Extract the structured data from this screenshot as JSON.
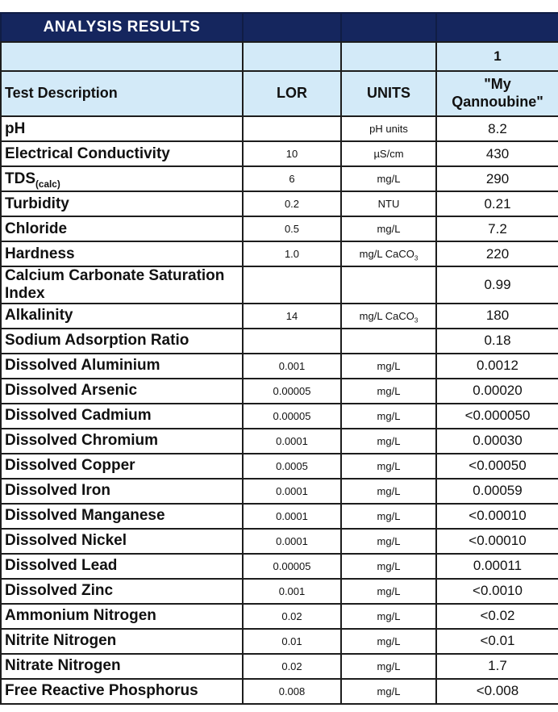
{
  "header": {
    "title": "ANALYSIS RESULTS",
    "sample_number": "1",
    "col_test": "Test Description",
    "col_lor": "LOR",
    "col_units": "UNITS",
    "sample_name": "\"My Qannoubine\""
  },
  "colors": {
    "band_navy": "#15265e",
    "band_light_blue": "#d3eaf8",
    "grid_border": "#1d1d1d"
  },
  "rows": [
    {
      "test": "pH",
      "lor": "",
      "units": "pH units",
      "value": "8.2"
    },
    {
      "test": "Electrical Conductivity",
      "lor": "10",
      "units": "µS/cm",
      "value": "430"
    },
    {
      "test": "TDS",
      "test_sub": "(calc)",
      "lor": "6",
      "units": "mg/L",
      "value": "290"
    },
    {
      "test": "Turbidity",
      "lor": "0.2",
      "units": "NTU",
      "value": "0.21"
    },
    {
      "test": "Chloride",
      "lor": "0.5",
      "units": "mg/L",
      "value": "7.2"
    },
    {
      "test": "Hardness",
      "lor": "1.0",
      "units": "mg/L CaCO",
      "units_sub": "3",
      "value": "220"
    },
    {
      "test": "Calcium Carbonate Saturation Index",
      "lor": "",
      "units": "",
      "value": "0.99"
    },
    {
      "test": "Alkalinity",
      "lor": "14",
      "units": "mg/L CaCO",
      "units_sub": "3",
      "value": "180"
    },
    {
      "test": "Sodium Adsorption Ratio",
      "lor": "",
      "units": "",
      "value": "0.18"
    },
    {
      "test": "Dissolved Aluminium",
      "lor": "0.001",
      "units": "mg/L",
      "value": "0.0012"
    },
    {
      "test": "Dissolved Arsenic",
      "lor": "0.00005",
      "units": "mg/L",
      "value": "0.00020"
    },
    {
      "test": "Dissolved Cadmium",
      "lor": "0.00005",
      "units": "mg/L",
      "value": "<0.000050"
    },
    {
      "test": "Dissolved Chromium",
      "lor": "0.0001",
      "units": "mg/L",
      "value": "0.00030"
    },
    {
      "test": "Dissolved Copper",
      "lor": "0.0005",
      "units": "mg/L",
      "value": "<0.00050"
    },
    {
      "test": "Dissolved Iron",
      "lor": "0.0001",
      "units": "mg/L",
      "value": "0.00059"
    },
    {
      "test": "Dissolved Manganese",
      "lor": "0.0001",
      "units": "mg/L",
      "value": "<0.00010"
    },
    {
      "test": "Dissolved Nickel",
      "lor": "0.0001",
      "units": "mg/L",
      "value": "<0.00010"
    },
    {
      "test": "Dissolved Lead",
      "lor": "0.00005",
      "units": "mg/L",
      "value": "0.00011"
    },
    {
      "test": "Dissolved Zinc",
      "lor": "0.001",
      "units": "mg/L",
      "value": "<0.0010"
    },
    {
      "test": "Ammonium Nitrogen",
      "lor": "0.02",
      "units": "mg/L",
      "value": "<0.02"
    },
    {
      "test": "Nitrite Nitrogen",
      "lor": "0.01",
      "units": "mg/L",
      "value": "<0.01"
    },
    {
      "test": "Nitrate Nitrogen",
      "lor": "0.02",
      "units": "mg/L",
      "value": "1.7"
    },
    {
      "test": "Free Reactive Phosphorus",
      "lor": "0.008",
      "units": "mg/L",
      "value": "<0.008"
    }
  ]
}
